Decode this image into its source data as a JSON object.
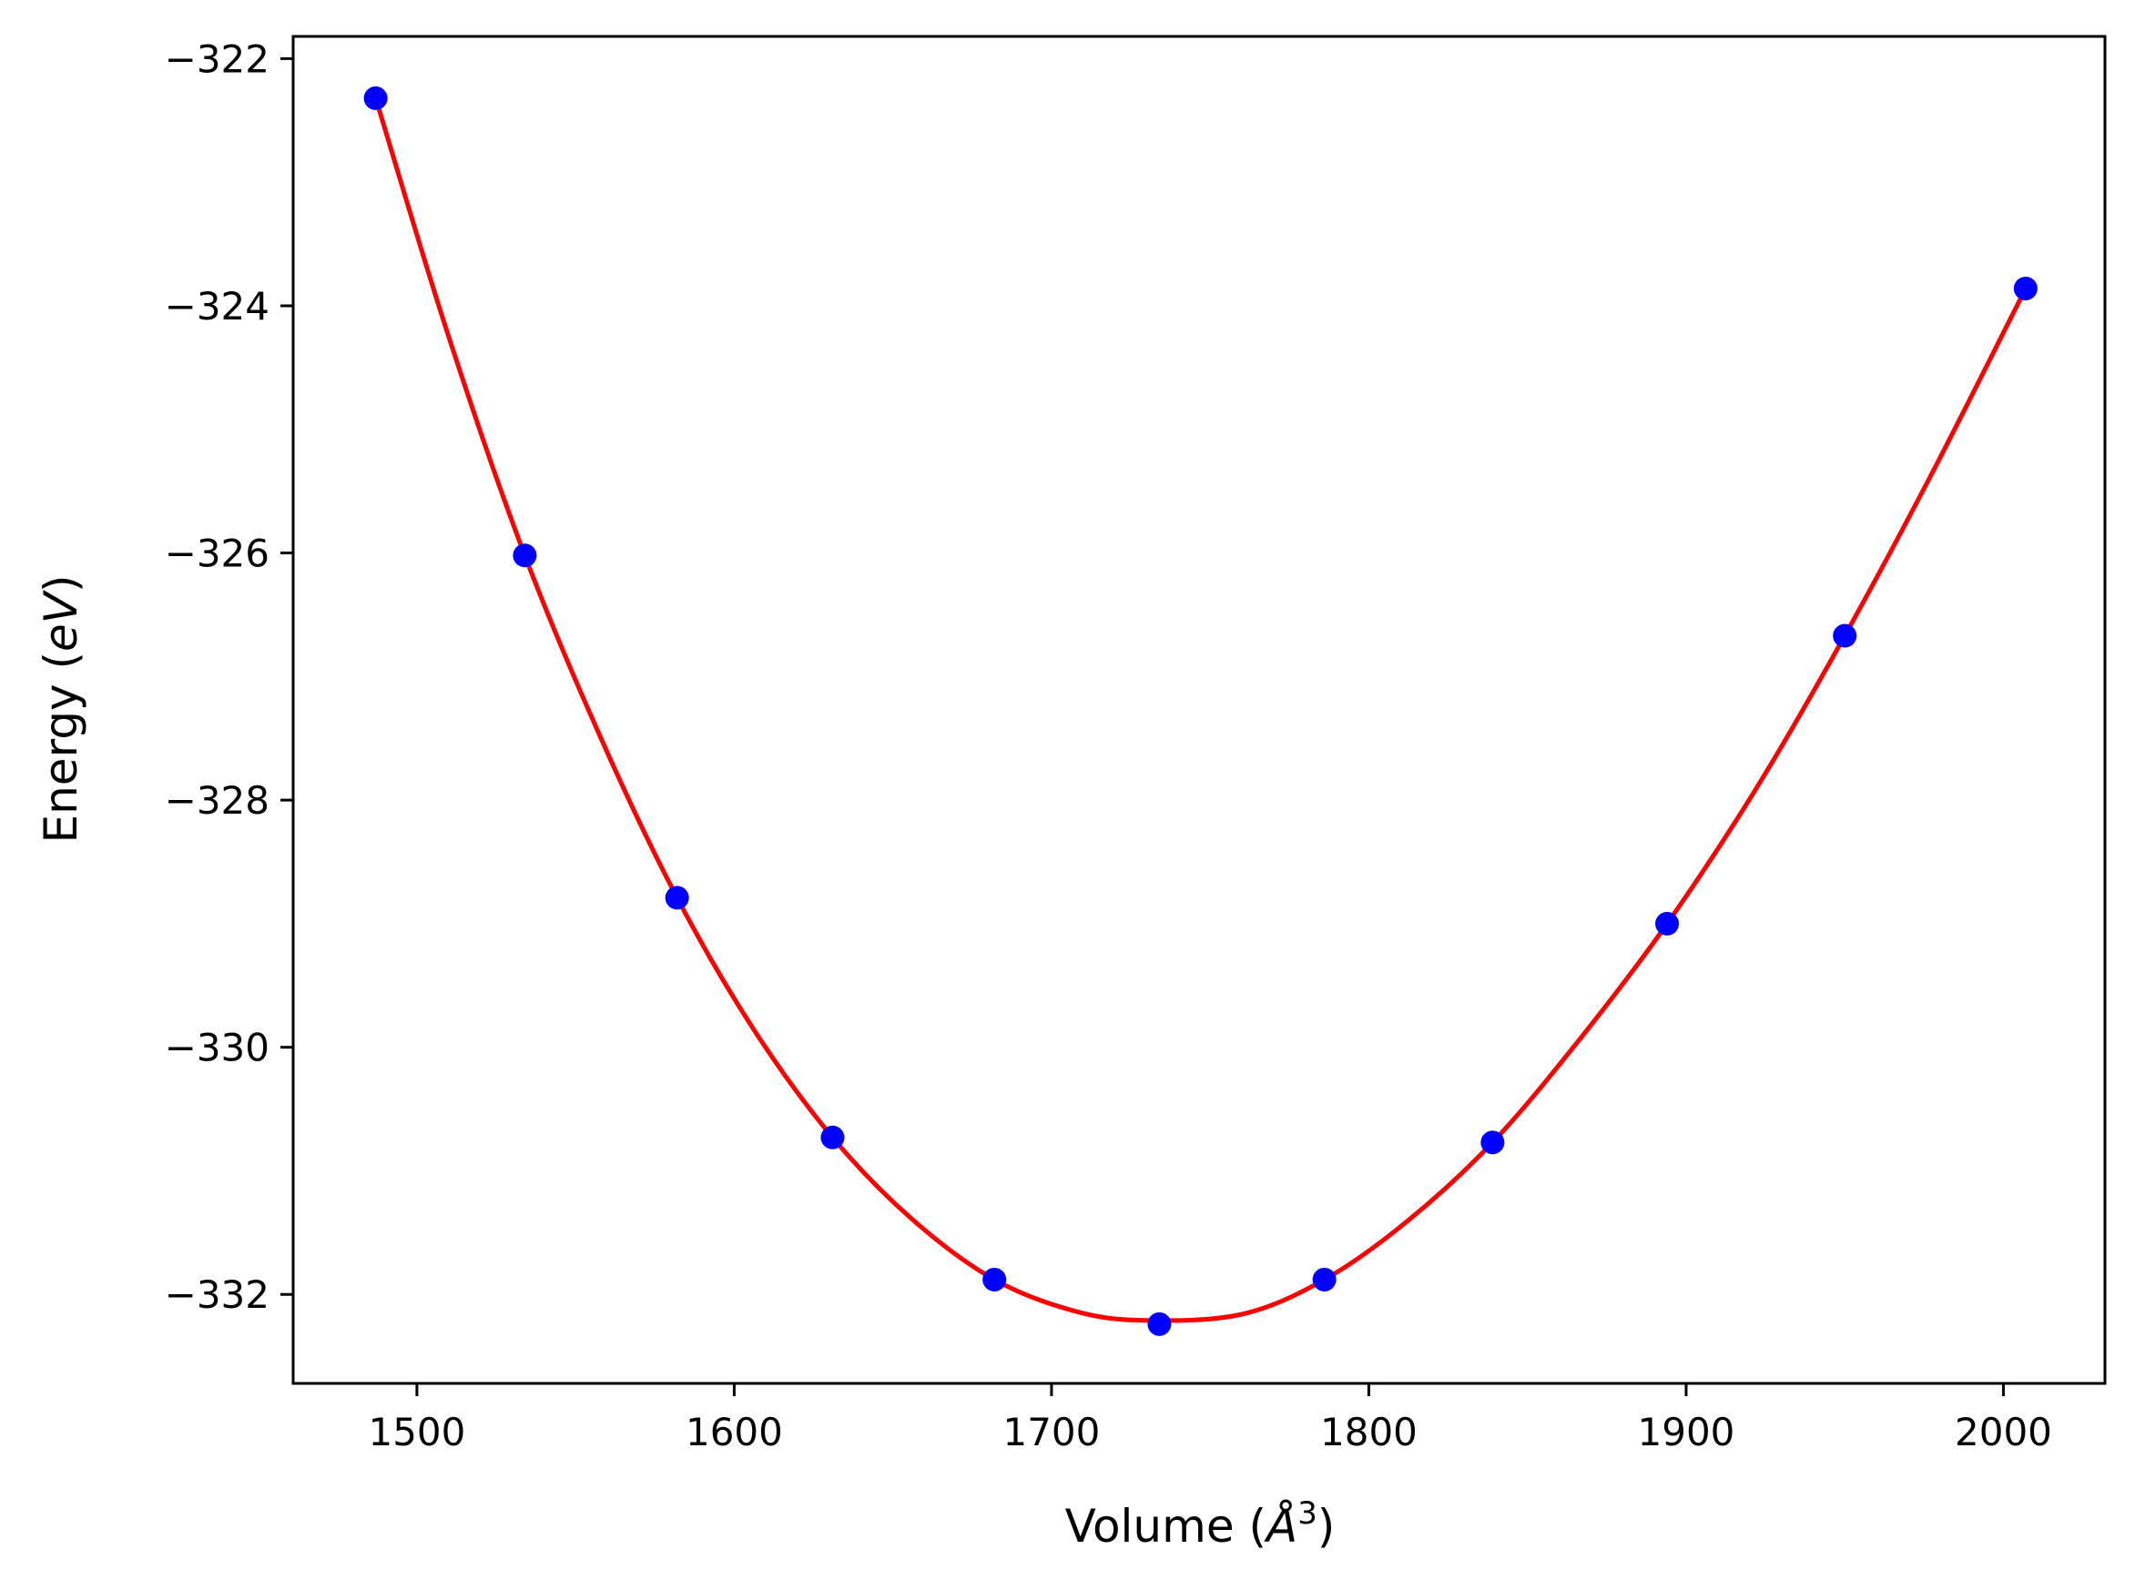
{
  "chart_data": {
    "type": "line",
    "xlabel": "Volume (",
    "xlabel_symbol": "Å",
    "xlabel_power": "3",
    "xlabel_close": ")",
    "ylabel": "Energy (",
    "ylabel_unit": "eV",
    "ylabel_close": ")",
    "xlim": [
      1461,
      2032
    ],
    "ylim": [
      -332.72,
      -321.82
    ],
    "x_ticks": [
      1500,
      1600,
      1700,
      1800,
      1900,
      2000
    ],
    "x_tick_labels": [
      "1500",
      "1600",
      "1700",
      "1800",
      "1900",
      "2000"
    ],
    "y_ticks": [
      -322,
      -324,
      -326,
      -328,
      -330,
      -332
    ],
    "y_tick_labels": [
      "−322",
      "−324",
      "−326",
      "−328",
      "−330",
      "−332"
    ],
    "grid": false,
    "series": [
      {
        "kind": "scatter",
        "color": "#0000ff",
        "x": [
          1487,
          1534,
          1582,
          1631,
          1682,
          1734,
          1786,
          1839,
          1894,
          1950,
          2007
        ],
        "y": [
          -322.32,
          -326.02,
          -328.79,
          -330.73,
          -331.88,
          -332.24,
          -331.88,
          -330.77,
          -329.0,
          -326.67,
          -323.86
        ]
      },
      {
        "kind": "fit",
        "color": "#ff0000",
        "x": [
          1487,
          1510,
          1534,
          1558,
          1582,
          1606,
          1631,
          1656,
          1682,
          1708,
          1730,
          1760,
          1786,
          1812,
          1839,
          1866,
          1894,
          1922,
          1950,
          1978,
          2007
        ],
        "y": [
          -322.32,
          -324.25,
          -326.02,
          -327.5,
          -328.79,
          -329.85,
          -330.73,
          -331.39,
          -331.88,
          -332.14,
          -332.21,
          -332.16,
          -331.88,
          -331.41,
          -330.77,
          -329.95,
          -329.0,
          -327.91,
          -326.67,
          -325.33,
          -323.86
        ]
      }
    ]
  }
}
